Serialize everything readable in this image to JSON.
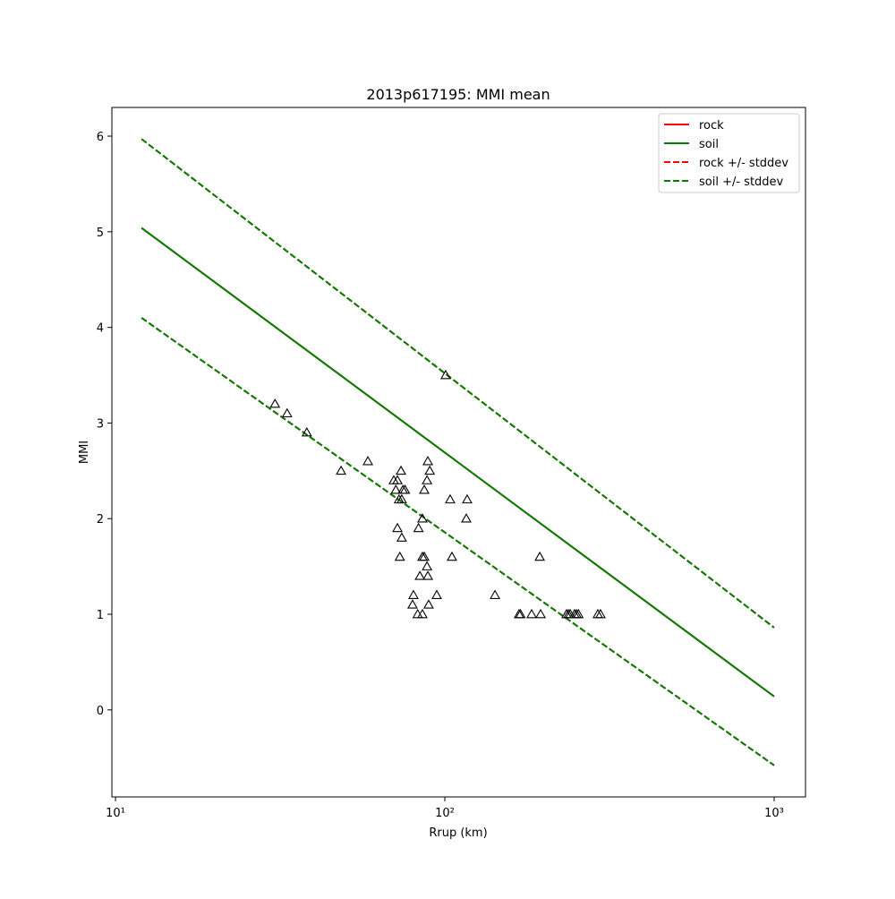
{
  "chart_data": {
    "type": "line",
    "title": "2013p617195: MMI mean",
    "x_label": "Rrup (km)",
    "y_label": "MMI",
    "xscale": "log",
    "xlim": [
      9.75,
      1245
    ],
    "ylim": [
      -0.91,
      6.3
    ],
    "xticks": [
      {
        "value": 10,
        "label": "10¹"
      },
      {
        "value": 100,
        "label": "10²"
      },
      {
        "value": 1000,
        "label": "10³"
      }
    ],
    "yticks": [
      0,
      1,
      2,
      3,
      4,
      5,
      6
    ],
    "legend": "upper right",
    "series": [
      {
        "name": "rock",
        "color": "#ff0000",
        "style": "solid",
        "x": [
          12,
          1000
        ],
        "values": [
          5.04,
          0.14
        ]
      },
      {
        "name": "soil",
        "color": "#008000",
        "style": "solid",
        "x": [
          12,
          1000
        ],
        "values": [
          5.04,
          0.14
        ]
      },
      {
        "name": "rock +/- stddev",
        "color": "#ff0000",
        "style": "dashed",
        "x": [
          12,
          1000
        ],
        "upper": [
          5.97,
          0.86
        ],
        "lower": [
          4.1,
          -0.58
        ]
      },
      {
        "name": "soil +/- stddev",
        "color": "#008000",
        "style": "dashed",
        "x": [
          12,
          1000
        ],
        "upper": [
          5.97,
          0.86
        ],
        "lower": [
          4.1,
          -0.58
        ]
      }
    ],
    "points": {
      "marker": "triangle",
      "color": "#000000",
      "x": [
        30.5,
        33.2,
        38.1,
        48.4,
        58.4,
        70.0,
        71.8,
        71.0,
        73.6,
        72.6,
        74.0,
        74.6,
        75.7,
        71.8,
        74.0,
        73.0,
        85.5,
        86.6,
        88.8,
        88.3,
        90.0,
        86.6,
        85.5,
        83.2,
        88.3,
        88.8,
        84.0,
        80.3,
        79.8,
        89.3,
        94.5,
        82.7,
        85.5,
        100.6,
        103.8,
        105.1,
        116.9,
        116.2,
        142,
        168,
        169.7,
        183.5,
        195.4,
        194.2,
        234.2,
        237.3,
        240.3,
        247.7,
        251,
        254.5,
        291.5,
        297
      ],
      "values": [
        3.2,
        3.1,
        2.9,
        2.5,
        2.6,
        2.4,
        2.4,
        2.3,
        2.5,
        2.2,
        2.2,
        2.3,
        2.3,
        1.9,
        1.8,
        1.6,
        1.6,
        1.6,
        2.6,
        2.4,
        2.5,
        2.3,
        2.0,
        1.9,
        1.5,
        1.4,
        1.4,
        1.2,
        1.1,
        1.1,
        1.2,
        1.0,
        1.0,
        3.5,
        2.2,
        1.6,
        2.2,
        2.0,
        1.2,
        1.0,
        1.0,
        1.0,
        1.0,
        1.6,
        1.0,
        1.0,
        1.0,
        1.0,
        1.0,
        1.0,
        1.0,
        1.0
      ]
    }
  }
}
